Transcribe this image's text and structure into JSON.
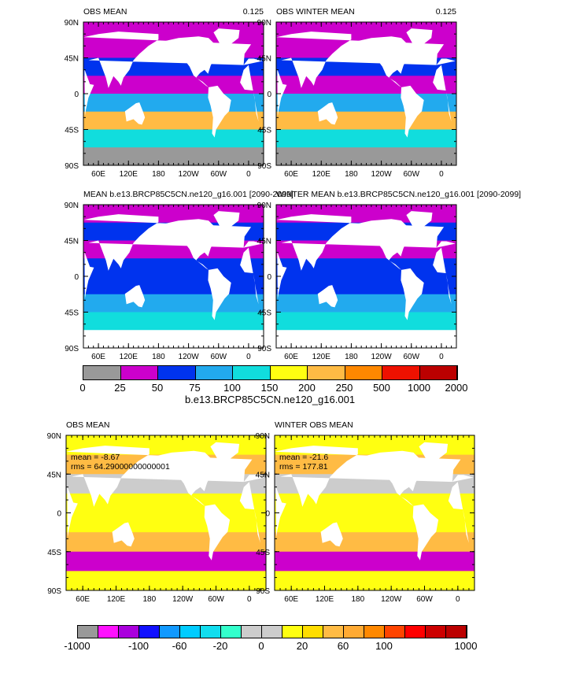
{
  "chart_data": {
    "type": "heatmap",
    "x_ticks": [
      "60E",
      "120E",
      "180",
      "120W",
      "60W",
      "0"
    ],
    "y_ticks": [
      "90N",
      "45N",
      "0",
      "45S",
      "90S"
    ],
    "panels": [
      {
        "title": "OBS MEAN",
        "value_label": "0.125"
      },
      {
        "title": "OBS WINTER MEAN",
        "value_label": "0.125"
      },
      {
        "title": "MEAN b.e13.BRCP85C5CN.ne120_g16.001 [2090-2099]",
        "value_label": ""
      },
      {
        "title": "WINTER MEAN b.e13.BRCP85C5CN.ne120_g16.001 [2090-2099]",
        "value_label": ""
      },
      {
        "title": "OBS MEAN",
        "stats": [
          "mean = -8.67",
          "rms = 64.29000000000001"
        ]
      },
      {
        "title": "WINTER OBS MEAN",
        "stats": [
          "mean = -21.6",
          "rms = 177.81"
        ]
      }
    ],
    "colorbar_1": {
      "colors": [
        "#999999",
        "#cc00cc",
        "#0033ee",
        "#22aaee",
        "#11dddd",
        "#ffff11",
        "#ffbb44",
        "#ff8800",
        "#ee1100",
        "#bb0000"
      ],
      "labels": [
        "0",
        "25",
        "50",
        "75",
        "100",
        "150",
        "200",
        "250",
        "500",
        "1000",
        "2000"
      ],
      "title": "b.e13.BRCP85C5CN.ne120_g16.001"
    },
    "colorbar_2": {
      "colors": [
        "#999999",
        "#ff11ff",
        "#aa00dd",
        "#1111ff",
        "#1199ff",
        "#00ccff",
        "#11ddee",
        "#33ffcc",
        "#cccccc",
        "#cccccc",
        "#ffff11",
        "#ffdd00",
        "#ffbb44",
        "#ffaa33",
        "#ff8800",
        "#ff4400",
        "#ff0000",
        "#cc0000",
        "#bb0000"
      ],
      "labels": [
        "-1000",
        "-100",
        "-60",
        "-20",
        "0",
        "20",
        "60",
        "100",
        "1000"
      ]
    }
  }
}
